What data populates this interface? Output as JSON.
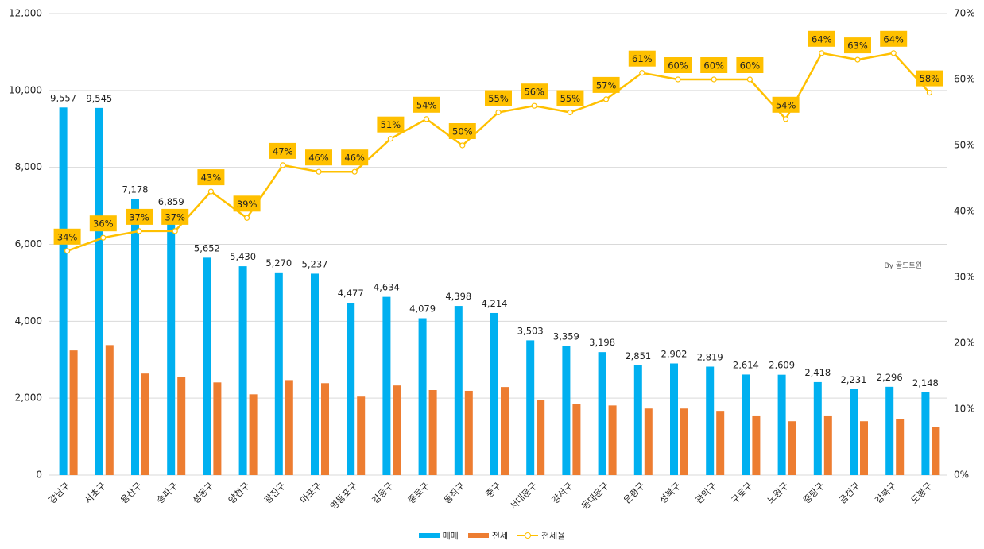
{
  "chart_data": {
    "type": "bar",
    "title": "",
    "xlabel": "",
    "ylabel": "",
    "categories": [
      "강남구",
      "서초구",
      "용산구",
      "송파구",
      "성동구",
      "양천구",
      "광진구",
      "마포구",
      "영등포구",
      "강동구",
      "종로구",
      "동작구",
      "중구",
      "서대문구",
      "강서구",
      "동대문구",
      "은평구",
      "성북구",
      "관악구",
      "구로구",
      "노원구",
      "중랑구",
      "금천구",
      "강북구",
      "도봉구"
    ],
    "series": [
      {
        "name": "매매",
        "type": "bar",
        "axis": "left",
        "color": "#00B0F0",
        "values": [
          9557,
          9545,
          7178,
          6859,
          5652,
          5430,
          5270,
          5237,
          4477,
          4634,
          4079,
          4398,
          4214,
          3503,
          3359,
          3198,
          2851,
          2902,
          2819,
          2614,
          2609,
          2418,
          2231,
          2296,
          2148
        ],
        "labels": [
          "9,557",
          "9,545",
          "7,178",
          "6,859",
          "5,652",
          "5,430",
          "5,270",
          "5,237",
          "4,477",
          "4,634",
          "4,079",
          "4,398",
          "4,214",
          "3,503",
          "3,359",
          "3,198",
          "2,851",
          "2,902",
          "2,819",
          "2,614",
          "2,609",
          "2,418",
          "2,231",
          "2,296",
          "2,148"
        ]
      },
      {
        "name": "전세",
        "type": "bar",
        "axis": "left",
        "color": "#ED7D31",
        "values": [
          3240,
          3380,
          2640,
          2560,
          2410,
          2100,
          2470,
          2390,
          2040,
          2330,
          2210,
          2190,
          2290,
          1960,
          1840,
          1810,
          1730,
          1730,
          1670,
          1550,
          1400,
          1550,
          1400,
          1460,
          1240
        ]
      },
      {
        "name": "전세율",
        "type": "line",
        "axis": "right",
        "color": "#FFC000",
        "values": [
          34,
          36,
          37,
          37,
          43,
          39,
          47,
          46,
          46,
          51,
          54,
          50,
          55,
          56,
          55,
          57,
          61,
          60,
          60,
          60,
          54,
          64,
          63,
          64,
          58
        ],
        "labels": [
          "34%",
          "36%",
          "37%",
          "37%",
          "43%",
          "39%",
          "47%",
          "46%",
          "46%",
          "51%",
          "54%",
          "50%",
          "55%",
          "56%",
          "55%",
          "57%",
          "61%",
          "60%",
          "60%",
          "60%",
          "54%",
          "64%",
          "63%",
          "64%",
          "58%"
        ]
      }
    ],
    "y_left": {
      "ylim": [
        0,
        12000
      ],
      "ticks": [
        "0",
        "2,000",
        "4,000",
        "6,000",
        "8,000",
        "10,000",
        "12,000"
      ],
      "tick_values": [
        0,
        2000,
        4000,
        6000,
        8000,
        10000,
        12000
      ]
    },
    "y_right": {
      "ylim": [
        0,
        70
      ],
      "ticks": [
        "0%",
        "10%",
        "20%",
        "30%",
        "40%",
        "50%",
        "60%",
        "70%"
      ],
      "tick_values": [
        0,
        10,
        20,
        30,
        40,
        50,
        60,
        70
      ]
    },
    "grid": true,
    "legend": {
      "position": "bottom",
      "entries": [
        "매매",
        "전세",
        "전세율"
      ]
    },
    "annotation": "By 골드트윈"
  }
}
